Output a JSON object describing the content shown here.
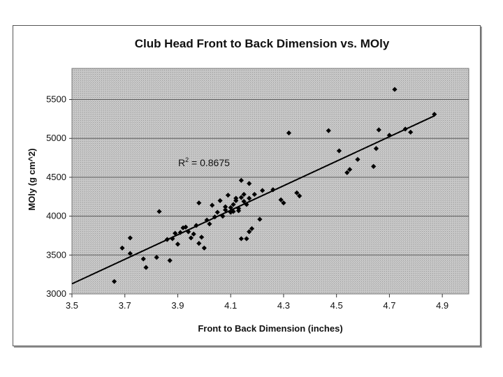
{
  "chart_data": {
    "type": "scatter",
    "title": "Club Head Front to Back Dimension vs. MOly",
    "xlabel": "Front to Back Dimension (inches)",
    "ylabel": "MOly (g cm^2)",
    "xlim": [
      3.5,
      5.0
    ],
    "ylim": [
      3000,
      5900
    ],
    "x_ticks": [
      "3.5",
      "3.7",
      "3.9",
      "4.1",
      "4.3",
      "4.5",
      "4.7",
      "4.9"
    ],
    "y_ticks": [
      "3000",
      "3500",
      "4000",
      "4500",
      "5000",
      "5500"
    ],
    "grid": "horizontal",
    "annotation": {
      "label": "R",
      "sup": "2",
      "rest": " = 0.8675"
    },
    "trendline": {
      "x": [
        3.5,
        4.87
      ],
      "y": [
        3130,
        5290
      ]
    },
    "points": [
      [
        3.66,
        3160
      ],
      [
        3.69,
        3590
      ],
      [
        3.72,
        3720
      ],
      [
        3.72,
        3520
      ],
      [
        3.77,
        3450
      ],
      [
        3.78,
        3340
      ],
      [
        3.82,
        3470
      ],
      [
        3.83,
        4060
      ],
      [
        3.86,
        3700
      ],
      [
        3.87,
        3430
      ],
      [
        3.88,
        3710
      ],
      [
        3.89,
        3780
      ],
      [
        3.9,
        3640
      ],
      [
        3.91,
        3790
      ],
      [
        3.92,
        3850
      ],
      [
        3.93,
        3860
      ],
      [
        3.94,
        3800
      ],
      [
        3.95,
        3720
      ],
      [
        3.96,
        3770
      ],
      [
        3.97,
        3880
      ],
      [
        3.98,
        4170
      ],
      [
        3.98,
        3650
      ],
      [
        3.99,
        3730
      ],
      [
        4.0,
        3590
      ],
      [
        4.01,
        3950
      ],
      [
        4.02,
        3900
      ],
      [
        4.03,
        4140
      ],
      [
        4.04,
        3990
      ],
      [
        4.05,
        4050
      ],
      [
        4.06,
        4200
      ],
      [
        4.07,
        4000
      ],
      [
        4.08,
        4080
      ],
      [
        4.08,
        4120
      ],
      [
        4.09,
        4270
      ],
      [
        4.1,
        4050
      ],
      [
        4.1,
        4110
      ],
      [
        4.11,
        4150
      ],
      [
        4.11,
        4060
      ],
      [
        4.12,
        4200
      ],
      [
        4.12,
        4230
      ],
      [
        4.13,
        4100
      ],
      [
        4.13,
        4070
      ],
      [
        4.14,
        4460
      ],
      [
        4.14,
        4240
      ],
      [
        4.14,
        3710
      ],
      [
        4.15,
        4190
      ],
      [
        4.15,
        4280
      ],
      [
        4.16,
        4150
      ],
      [
        4.16,
        3710
      ],
      [
        4.17,
        4420
      ],
      [
        4.17,
        4230
      ],
      [
        4.17,
        3800
      ],
      [
        4.18,
        3840
      ],
      [
        4.19,
        4280
      ],
      [
        4.21,
        3960
      ],
      [
        4.22,
        4330
      ],
      [
        4.26,
        4340
      ],
      [
        4.29,
        4210
      ],
      [
        4.3,
        4170
      ],
      [
        4.32,
        5070
      ],
      [
        4.35,
        4300
      ],
      [
        4.36,
        4260
      ],
      [
        4.47,
        5100
      ],
      [
        4.51,
        4840
      ],
      [
        4.54,
        4560
      ],
      [
        4.55,
        4600
      ],
      [
        4.58,
        4730
      ],
      [
        4.64,
        4640
      ],
      [
        4.65,
        4870
      ],
      [
        4.66,
        5110
      ],
      [
        4.7,
        5040
      ],
      [
        4.72,
        5630
      ],
      [
        4.76,
        5120
      ],
      [
        4.78,
        5080
      ],
      [
        4.87,
        5310
      ]
    ]
  }
}
